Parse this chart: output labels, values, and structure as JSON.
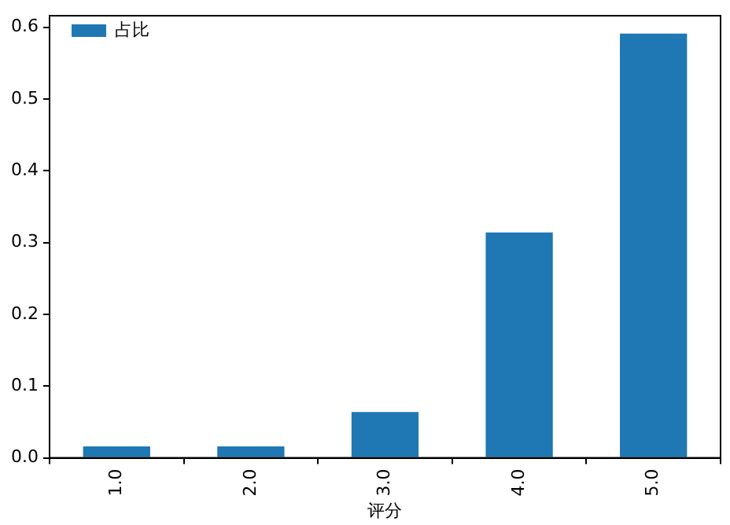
{
  "chart_data": {
    "type": "bar",
    "xlabel": "评分",
    "categories": [
      "1.0",
      "2.0",
      "3.0",
      "4.0",
      "5.0"
    ],
    "series": [
      {
        "name": "占比",
        "color": "#1f77b4",
        "values": [
          0.016,
          0.016,
          0.064,
          0.314,
          0.591
        ]
      }
    ],
    "ylim": [
      0,
      0.616
    ],
    "yticks": [
      {
        "value": 0,
        "label": "0.0"
      },
      {
        "value": 0.1,
        "label": "0.1"
      },
      {
        "value": 0.2,
        "label": "0.2"
      },
      {
        "value": 0.3,
        "label": "0.3"
      },
      {
        "value": 0.4,
        "label": "0.4"
      },
      {
        "value": 0.5,
        "label": "0.5"
      },
      {
        "value": 0.6,
        "label": "0.6"
      }
    ],
    "legend": "top left",
    "grid": false
  }
}
